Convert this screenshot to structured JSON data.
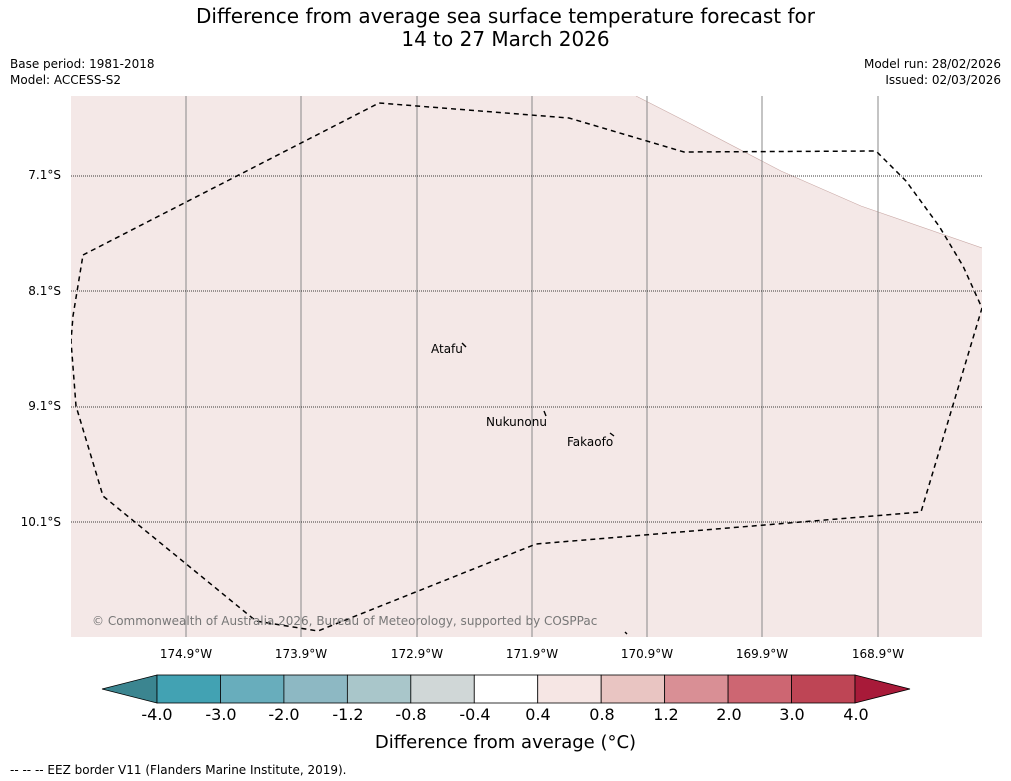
{
  "title_line1": "Difference from average sea surface temperature forecast for",
  "title_line2": "14 to 27 March 2026",
  "base_period": "Base period: 1981-2018",
  "model": "Model: ACCESS-S2",
  "model_run": "Model run: 28/02/2026",
  "issued": "Issued: 02/03/2026",
  "colors": {
    "map_fill": "#f4e8e7",
    "copyright_text": "#777777"
  },
  "map": {
    "lat_labels": [
      "7.1°S",
      "8.1°S",
      "9.1°S",
      "10.1°S"
    ],
    "lon_labels": [
      "174.9°W",
      "173.9°W",
      "172.9°W",
      "171.9°W",
      "170.9°W",
      "169.9°W",
      "168.9°W"
    ],
    "places": [
      {
        "name": "Atafu"
      },
      {
        "name": "Nukunonu"
      },
      {
        "name": "Fakaofo"
      }
    ],
    "copyright": "© Commonwealth of Australia 2026, Bureau of Meteorology, supported by COSPPac",
    "anomaly_category": "0.4 to 0.8"
  },
  "colorbar": {
    "ticks": [
      "-4.0",
      "-3.0",
      "-2.0",
      "-1.2",
      "-0.8",
      "-0.4",
      "0.4",
      "0.8",
      "1.2",
      "2.0",
      "3.0",
      "4.0"
    ],
    "colors": [
      "#42a2b3",
      "#68adbc",
      "#8db8c3",
      "#a9c6ca",
      "#d0d7d7",
      "#ffffff",
      "#f6e6e4",
      "#e9c5c2",
      "#d98f95",
      "#cd6672",
      "#be4555"
    ],
    "under_color": "#3b8590",
    "over_color": "#a81a39",
    "label": "Difference from average (°C)"
  },
  "footnote": "--  --  -- EEZ border V11 (Flanders Marine Institute, 2019)."
}
